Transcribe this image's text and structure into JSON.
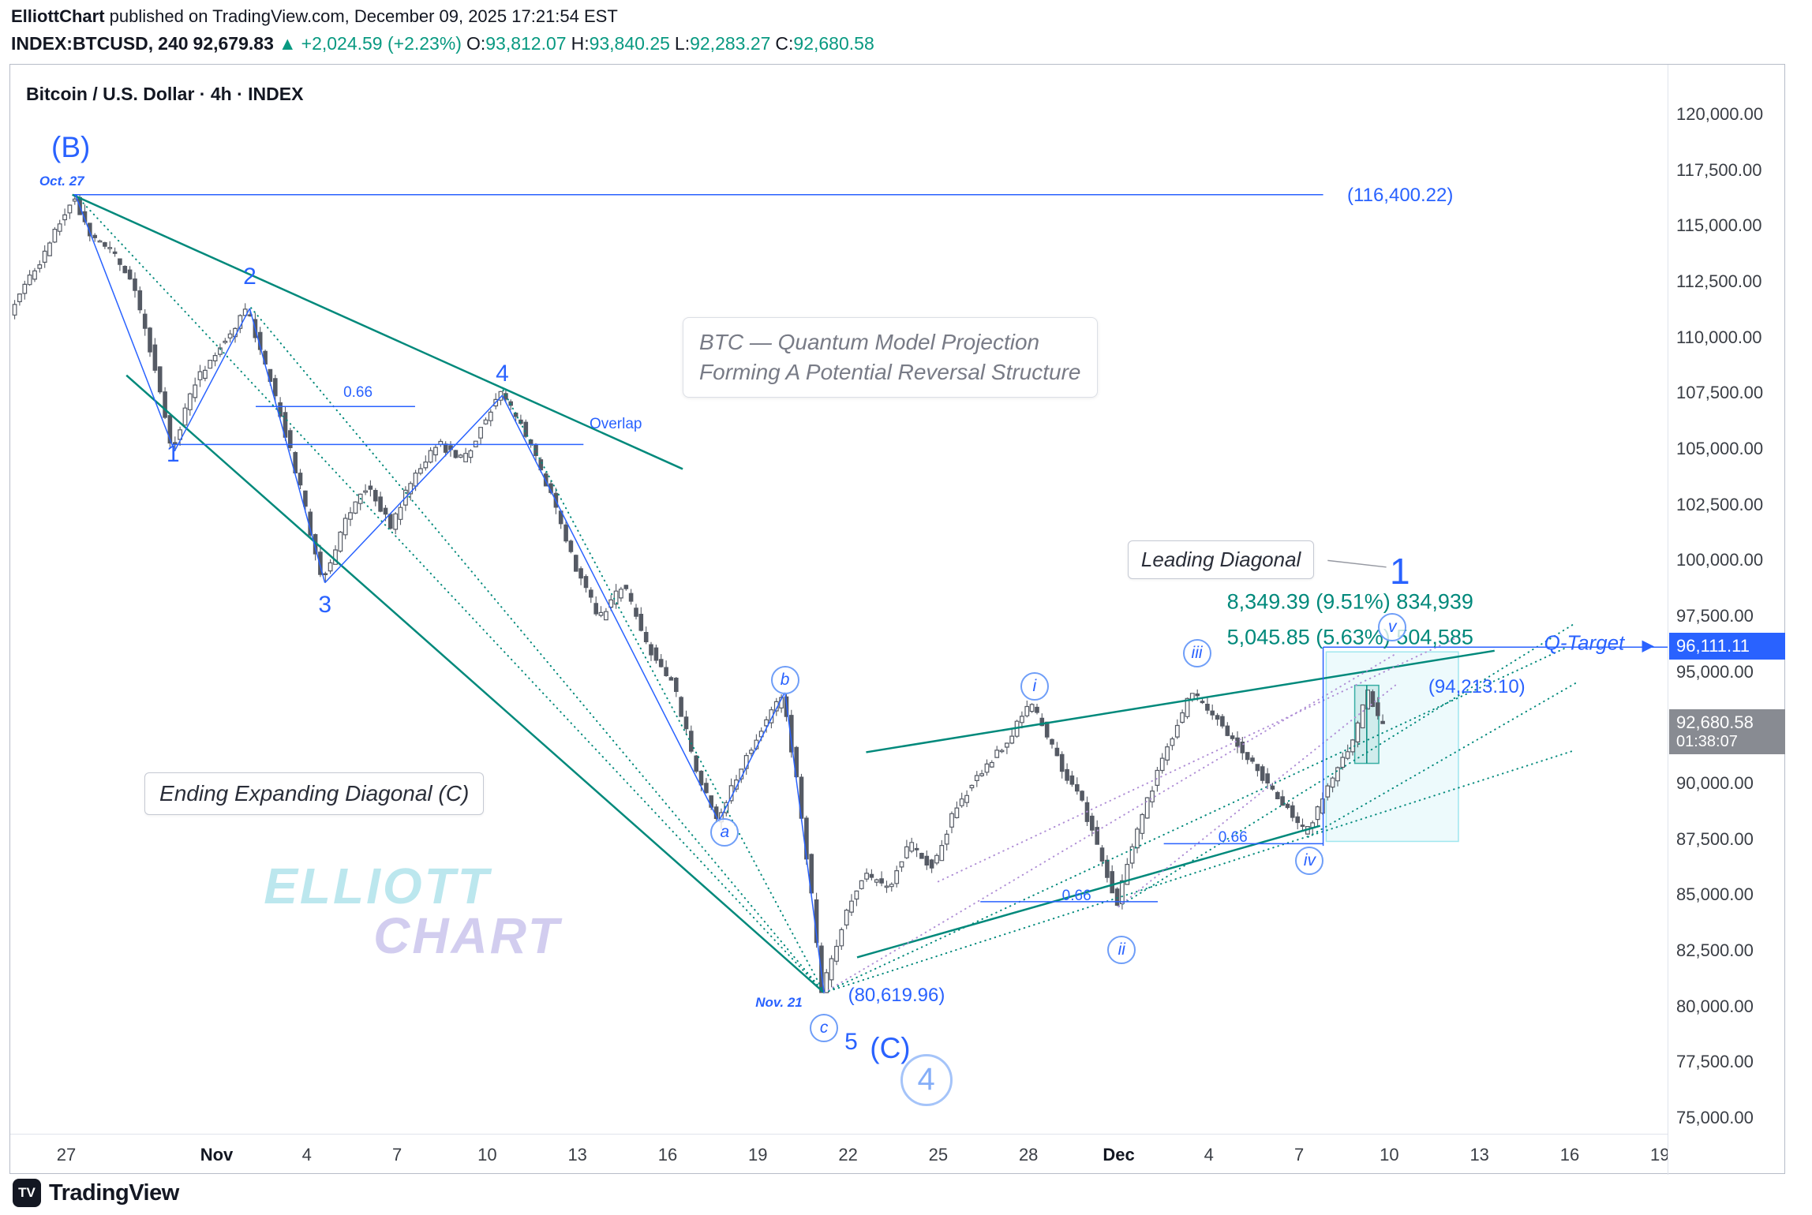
{
  "colors": {
    "blue": "#2962ff",
    "teal": "#00897b",
    "green": "#089981",
    "purple": "#b08fd6",
    "gray": "#9598a1",
    "candle": "#555a64",
    "tag_gray": "#888b92",
    "zone_cyan": "#00bcd4"
  },
  "header": {
    "publisher": "ElliottChart",
    "published_rest": " published on TradingView.com, December 09, 2025 17:21:54 EST",
    "symbol": "INDEX:BTCUSD,",
    "interval": "240",
    "last": "92,679.83",
    "change_arrow": "▲",
    "change": "+2,024.59 (+2.23%)",
    "o_label": "O:",
    "o": "93,812.07",
    "h_label": "H:",
    "h": "93,840.25",
    "l_label": "L:",
    "l": "92,283.27",
    "c_label": "C:",
    "c": "92,680.58"
  },
  "chart": {
    "title": "Bitcoin / U.S. Dollar · 4h · INDEX",
    "watermark1": "ELLIOTT",
    "watermark2": "CHART"
  },
  "footer": {
    "brand": "TradingView",
    "icon_glyph": "TV"
  },
  "chart_data": {
    "type": "candlestick",
    "symbol": "INDEX:BTCUSD",
    "timeframe": "4h",
    "title": "Bitcoin / U.S. Dollar · 4h · INDEX",
    "y_axis": {
      "min": 75000,
      "max": 120000,
      "step": 2500,
      "ticks": [
        {
          "label": "120,000.00",
          "p": 120000
        },
        {
          "label": "117,500.00",
          "p": 117500
        },
        {
          "label": "115,000.00",
          "p": 115000
        },
        {
          "label": "112,500.00",
          "p": 112500
        },
        {
          "label": "110,000.00",
          "p": 110000
        },
        {
          "label": "107,500.00",
          "p": 107500
        },
        {
          "label": "105,000.00",
          "p": 105000
        },
        {
          "label": "102,500.00",
          "p": 102500
        },
        {
          "label": "100,000.00",
          "p": 100000
        },
        {
          "label": "97,500.00",
          "p": 97500
        },
        {
          "label": "95,000.00",
          "p": 95000
        },
        {
          "label": "92,500.00",
          "p": 92500
        },
        {
          "label": "90,000.00",
          "p": 90000
        },
        {
          "label": "87,500.00",
          "p": 87500
        },
        {
          "label": "85,000.00",
          "p": 85000
        },
        {
          "label": "82,500.00",
          "p": 82500
        },
        {
          "label": "80,000.00",
          "p": 80000
        },
        {
          "label": "77,500.00",
          "p": 77500
        },
        {
          "label": "75,000.00",
          "p": 75000
        }
      ]
    },
    "x_axis": {
      "ticks": [
        {
          "label": "27",
          "d": 0
        },
        {
          "label": "Nov",
          "d": 5,
          "b": 1
        },
        {
          "label": "4",
          "d": 8
        },
        {
          "label": "7",
          "d": 11
        },
        {
          "label": "10",
          "d": 14
        },
        {
          "label": "13",
          "d": 17
        },
        {
          "label": "16",
          "d": 20
        },
        {
          "label": "19",
          "d": 23
        },
        {
          "label": "22",
          "d": 26
        },
        {
          "label": "25",
          "d": 29
        },
        {
          "label": "28",
          "d": 32
        },
        {
          "label": "Dec",
          "d": 35,
          "b": 1
        },
        {
          "label": "4",
          "d": 38
        },
        {
          "label": "7",
          "d": 41
        },
        {
          "label": "10",
          "d": 44
        },
        {
          "label": "13",
          "d": 47
        },
        {
          "label": "16",
          "d": 50
        },
        {
          "label": "19",
          "d": 53
        }
      ]
    },
    "bars_start": -1.8,
    "bars_end": 43.75,
    "bars_per_day": 6,
    "last_price": 92680.58,
    "last_price_text": "92,680.58",
    "countdown": "01:38:07",
    "q_target": 96111.11,
    "q_target_text": "96,111.11",
    "key_levels": {
      "wave_B_high": 116400.22,
      "wave_C_low": 80619.96,
      "recent_high": 94213.1
    },
    "price_anchors": [
      [
        -1.8,
        111000
      ],
      [
        -1.3,
        112400
      ],
      [
        -0.6,
        113800
      ],
      [
        0.3,
        116400,
        "h"
      ],
      [
        0.9,
        114500
      ],
      [
        1.6,
        113800
      ],
      [
        2.3,
        112400
      ],
      [
        3.0,
        108800
      ],
      [
        3.6,
        104900,
        "l"
      ],
      [
        4.3,
        107900
      ],
      [
        5.1,
        109400
      ],
      [
        6.1,
        111300,
        "h"
      ],
      [
        7.0,
        107400
      ],
      [
        7.8,
        103600
      ],
      [
        8.6,
        99000,
        "l"
      ],
      [
        9.4,
        101900
      ],
      [
        10.1,
        103400
      ],
      [
        10.9,
        101500
      ],
      [
        11.6,
        103700
      ],
      [
        12.4,
        105300
      ],
      [
        13.3,
        104500
      ],
      [
        14.5,
        107600,
        "h"
      ],
      [
        15.3,
        105800
      ],
      [
        16.2,
        103000
      ],
      [
        17.0,
        99800
      ],
      [
        17.8,
        97400
      ],
      [
        18.6,
        98900
      ],
      [
        19.4,
        96200
      ],
      [
        20.3,
        94400
      ],
      [
        21.0,
        90700
      ],
      [
        21.7,
        88300,
        "l"
      ],
      [
        22.5,
        90700
      ],
      [
        23.2,
        92500
      ],
      [
        23.9,
        94000,
        "h"
      ],
      [
        24.4,
        90000
      ],
      [
        24.9,
        84600
      ],
      [
        25.2,
        80620,
        "l"
      ],
      [
        25.9,
        83700
      ],
      [
        26.6,
        86000
      ],
      [
        27.4,
        85200
      ],
      [
        28.1,
        87300
      ],
      [
        28.9,
        86200
      ],
      [
        29.6,
        88700
      ],
      [
        30.4,
        90400
      ],
      [
        31.3,
        91800
      ],
      [
        32.2,
        93600,
        "h"
      ],
      [
        33.0,
        91200
      ],
      [
        33.8,
        89300
      ],
      [
        34.5,
        86800
      ],
      [
        35.0,
        84500,
        "l"
      ],
      [
        35.8,
        88300
      ],
      [
        36.6,
        91300
      ],
      [
        37.5,
        94050,
        "h"
      ],
      [
        38.3,
        93000
      ],
      [
        39.2,
        91400
      ],
      [
        40.0,
        90100
      ],
      [
        40.9,
        88500
      ],
      [
        41.3,
        87700,
        "l"
      ],
      [
        42.1,
        89900
      ],
      [
        42.8,
        91700
      ],
      [
        43.4,
        94213,
        "h"
      ],
      [
        43.75,
        92680
      ]
    ],
    "overlays": {
      "lines": [
        {
          "pts": [
            [
              0.2,
              116400
            ],
            [
              20.5,
              104100
            ]
          ],
          "c": "teal",
          "w": 2.5
        },
        {
          "pts": [
            [
              2.0,
              108300
            ],
            [
              25.2,
              80620
            ]
          ],
          "c": "teal",
          "w": 2.5
        },
        {
          "pts": [
            [
              26.3,
              82200
            ],
            [
              41.7,
              88100
            ]
          ],
          "c": "teal",
          "w": 2.5
        },
        {
          "pts": [
            [
              26.6,
              91400
            ],
            [
              47.5,
              95950
            ]
          ],
          "c": "teal",
          "w": 2.5
        },
        {
          "pts": [
            [
              25.2,
              80620
            ],
            [
              0.3,
              116400
            ]
          ],
          "c": "teal",
          "w": 2,
          "dash": "dot"
        },
        {
          "pts": [
            [
              25.2,
              80620
            ],
            [
              6.1,
              111400
            ]
          ],
          "c": "teal",
          "w": 2,
          "dash": "dot"
        },
        {
          "pts": [
            [
              25.2,
              80620
            ],
            [
              14.5,
              107700
            ]
          ],
          "c": "teal",
          "w": 2,
          "dash": "dot"
        },
        {
          "pts": [
            [
              25.2,
              80620
            ],
            [
              49.9,
              96100
            ]
          ],
          "c": "teal",
          "w": 2,
          "dash": "dot"
        },
        {
          "pts": [
            [
              25.2,
              80620
            ],
            [
              50.2,
              91500
            ]
          ],
          "c": "teal",
          "w": 2,
          "dash": "dot"
        },
        {
          "pts": [
            [
              35.0,
              84480
            ],
            [
              50.2,
              97200
            ]
          ],
          "c": "teal",
          "w": 2,
          "dash": "dot"
        },
        {
          "pts": [
            [
              41.3,
              87600
            ],
            [
              50.2,
              94500
            ]
          ],
          "c": "teal",
          "w": 2,
          "dash": "dot"
        },
        {
          "pts": [
            [
              25.2,
              80620
            ],
            [
              44.2,
              95800
            ]
          ],
          "c": "purple",
          "w": 2,
          "dash": "dot"
        },
        {
          "pts": [
            [
              29.0,
              85600
            ],
            [
              46.5,
              96700
            ]
          ],
          "c": "purple",
          "w": 2,
          "dash": "dot"
        },
        {
          "pts": [
            [
              35.0,
              84480
            ],
            [
              44.2,
              94400
            ]
          ],
          "c": "purple",
          "w": 2,
          "dash": "dot"
        },
        {
          "pts": [
            [
              0.25,
              116400
            ],
            [
              41.8,
              116400
            ]
          ],
          "c": "blue",
          "w": 1.5
        },
        {
          "pts": [
            [
              6.3,
              106900
            ],
            [
              11.6,
              106900
            ]
          ],
          "c": "blue",
          "w": 1.5
        },
        {
          "pts": [
            [
              3.5,
              105200
            ],
            [
              17.2,
              105200
            ]
          ],
          "c": "blue",
          "w": 1.5
        },
        {
          "pts": [
            [
              14.5,
              107400
            ],
            [
              21.7,
              88300
            ]
          ],
          "c": "blue",
          "w": 1.5
        },
        {
          "pts": [
            [
              21.7,
              88300
            ],
            [
              23.9,
              94100
            ]
          ],
          "c": "blue",
          "w": 1.5
        },
        {
          "pts": [
            [
              23.9,
              94100
            ],
            [
              25.2,
              80620
            ]
          ],
          "c": "blue",
          "w": 1.5
        },
        {
          "pts": [
            [
              30.4,
              84700
            ],
            [
              36.3,
              84700
            ]
          ],
          "c": "blue",
          "w": 1.5
        },
        {
          "pts": [
            [
              36.5,
              87300
            ],
            [
              41.8,
              87300
            ]
          ],
          "c": "blue",
          "w": 1.5
        },
        {
          "pts": [
            [
              41.8,
              96111
            ],
            [
              53.3,
              96111
            ]
          ],
          "c": "blue",
          "w": 1.5
        },
        {
          "pts": [
            [
              41.8,
              96111
            ],
            [
              41.8,
              87200
            ]
          ],
          "c": "blue",
          "w": 1.5
        },
        {
          "pts": [
            [
              0.3,
              116400
            ],
            [
              3.6,
              104900
            ]
          ],
          "c": "blue",
          "w": 1.5
        },
        {
          "pts": [
            [
              3.6,
              104900
            ],
            [
              6.1,
              111300
            ]
          ],
          "c": "blue",
          "w": 1.5
        },
        {
          "pts": [
            [
              6.1,
              111300
            ],
            [
              8.6,
              99000
            ]
          ],
          "c": "blue",
          "w": 1.5
        },
        {
          "pts": [
            [
              8.6,
              99000
            ],
            [
              14.5,
              107400
            ]
          ],
          "c": "blue",
          "w": 1.5
        },
        {
          "pts": [
            [
              41.95,
              100000
            ],
            [
              43.9,
              99700
            ]
          ],
          "c": "gray",
          "w": 1.5
        },
        {
          "pts": [
            [
              43.25,
              94400
            ],
            [
              43.25,
              90900
            ]
          ],
          "c": "teal",
          "w": 1.5
        }
      ],
      "boxes": [
        {
          "d1": 41.9,
          "p1": 95900,
          "d2": 46.3,
          "p2": 87400,
          "fill": "rgba(0,188,212,0.07)",
          "stroke": "rgba(0,188,212,0.35)"
        },
        {
          "d1": 42.85,
          "p1": 94400,
          "d2": 43.65,
          "p2": 90900,
          "fill": "rgba(0,137,123,0.12)",
          "stroke": "rgba(38,166,154,0.9)"
        }
      ]
    },
    "annotations": [
      {
        "id": "wave-B-label",
        "text": "(B)",
        "d": 0.15,
        "p": 118500,
        "cls": "wnum big"
      },
      {
        "id": "date-oct-27",
        "text": "Oct. 27",
        "d": -0.15,
        "p": 117000,
        "cls": "datelabel"
      },
      {
        "id": "level-116400",
        "text": "(116,400.22)",
        "d": 42.6,
        "p": 116350,
        "cls": "bluetext",
        "a": "l"
      },
      {
        "id": "wave-1",
        "text": "1",
        "d": 3.55,
        "p": 104750,
        "cls": "wnum"
      },
      {
        "id": "wave-2",
        "text": "2",
        "d": 6.1,
        "p": 112700,
        "cls": "wnum"
      },
      {
        "id": "wave-3",
        "text": "3",
        "d": 8.6,
        "p": 98000,
        "cls": "wnum"
      },
      {
        "id": "wave-4",
        "text": "4",
        "d": 14.5,
        "p": 108350,
        "cls": "wnum"
      },
      {
        "id": "fib-066-top",
        "text": "0.66",
        "d": 9.7,
        "p": 107500,
        "cls": "smallblue"
      },
      {
        "id": "overlap-label",
        "text": "Overlap",
        "d": 17.4,
        "p": 106100,
        "cls": "smallblue",
        "a": "l"
      },
      {
        "id": "model-note",
        "lines": [
          "BTC — Quantum Model Projection",
          "Forming A Potential Reversal Structure"
        ],
        "d": 20.5,
        "p": 110900,
        "cls": "notebox",
        "a": "tl"
      },
      {
        "id": "leading-diagonal-label",
        "text": "Leading Diagonal",
        "d": 35.3,
        "p": 100900,
        "cls": "namebox",
        "a": "tl"
      },
      {
        "id": "wave-1-major",
        "text": "1",
        "d": 44.35,
        "p": 99500,
        "cls": "wnum xl"
      },
      {
        "id": "measure-1",
        "text": "8,349.39 (9.51%) 834,939",
        "d": 38.6,
        "p": 98150,
        "cls": "tealtext",
        "a": "l"
      },
      {
        "id": "measure-2",
        "text": "5,045.85 (5.63%) 504,585",
        "d": 38.6,
        "p": 96550,
        "cls": "tealtext",
        "a": "l"
      },
      {
        "id": "q-target-label",
        "text": "Q-Target",
        "d": 49.15,
        "p": 96300,
        "cls": "qtarget",
        "a": "l"
      },
      {
        "id": "q-target-arrow",
        "text": "▶",
        "d": 52.4,
        "p": 96180,
        "cls": "qarrow",
        "a": "l"
      },
      {
        "id": "level-94213",
        "text": "(94,213.10)",
        "d": 45.3,
        "p": 94300,
        "cls": "bluetext",
        "a": "l"
      },
      {
        "id": "wave-v",
        "text": "v",
        "d": 44.1,
        "p": 97000,
        "cls": "circ"
      },
      {
        "id": "wave-iii",
        "text": "iii",
        "d": 37.6,
        "p": 95850,
        "cls": "circ"
      },
      {
        "id": "wave-i",
        "text": "i",
        "d": 32.2,
        "p": 94350,
        "cls": "circ"
      },
      {
        "id": "wave-iv",
        "text": "iv",
        "d": 41.35,
        "p": 86550,
        "cls": "circ"
      },
      {
        "id": "wave-ii",
        "text": "ii",
        "d": 35.1,
        "p": 82550,
        "cls": "circ"
      },
      {
        "id": "wave-a",
        "text": "a",
        "d": 21.9,
        "p": 87800,
        "cls": "circ"
      },
      {
        "id": "wave-b",
        "text": "b",
        "d": 23.9,
        "p": 94650,
        "cls": "circ"
      },
      {
        "id": "wave-c",
        "text": "c",
        "d": 25.2,
        "p": 79050,
        "cls": "circ"
      },
      {
        "id": "wave-5",
        "text": "5",
        "d": 26.1,
        "p": 78400,
        "cls": "wnum"
      },
      {
        "id": "wave-C-label",
        "text": "(C)",
        "d": 27.4,
        "p": 78100,
        "cls": "wnum big"
      },
      {
        "id": "wave-4-circled",
        "text": "4",
        "d": 28.6,
        "p": 76700,
        "cls": "bigcirc"
      },
      {
        "id": "date-nov-21",
        "text": "Nov. 21",
        "d": 23.7,
        "p": 80150,
        "cls": "datelabel"
      },
      {
        "id": "level-80619",
        "text": "(80,619.96)",
        "d": 26.0,
        "p": 80500,
        "cls": "bluetext",
        "a": "l"
      },
      {
        "id": "fib-066-mid",
        "text": "0.66",
        "d": 33.6,
        "p": 84950,
        "cls": "smallblue"
      },
      {
        "id": "fib-066-right",
        "text": "0.66",
        "d": 38.8,
        "p": 87550,
        "cls": "smallblue"
      },
      {
        "id": "ending-diagonal-label",
        "text": "Ending Expanding Diagonal (C)",
        "d": 2.6,
        "p": 90500,
        "cls": "namebox lg",
        "a": "tl"
      }
    ]
  }
}
